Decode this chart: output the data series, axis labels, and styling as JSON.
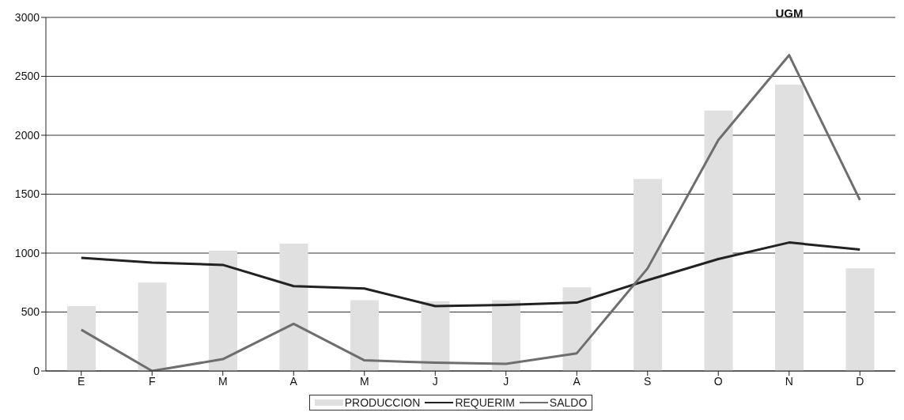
{
  "chart_data": {
    "type": "bar",
    "title": "UGM",
    "categories": [
      "E",
      "F",
      "M",
      "A",
      "M",
      "J",
      "J",
      "A",
      "S",
      "O",
      "N",
      "D"
    ],
    "series": [
      {
        "name": "PRODUCCION",
        "color": "#e0e0e0",
        "values": [
          550,
          750,
          1020,
          1080,
          600,
          590,
          600,
          710,
          1630,
          2210,
          2430,
          870
        ]
      },
      {
        "name": "REQUERIM",
        "type": "line",
        "color": "#222222",
        "values": [
          960,
          920,
          900,
          720,
          700,
          550,
          560,
          580,
          770,
          950,
          1090,
          1030
        ]
      },
      {
        "name": "SALDO",
        "type": "line",
        "color": "#6e6e6e",
        "values": [
          350,
          0,
          100,
          400,
          90,
          70,
          60,
          150,
          870,
          1960,
          2680,
          1450
        ]
      }
    ],
    "ylim": [
      0,
      3000
    ],
    "yticks": [
      0,
      500,
      1000,
      1500,
      2000,
      2500,
      3000
    ],
    "grid": "y",
    "legend": "bottom",
    "marker": "none",
    "line_style": "solid"
  }
}
